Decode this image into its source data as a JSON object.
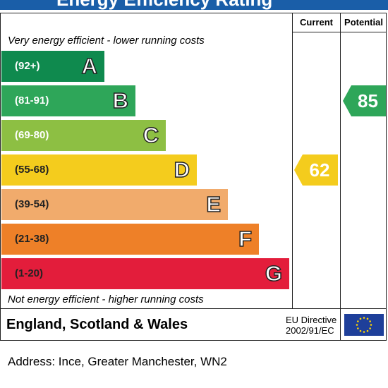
{
  "header": {
    "title": "Energy Efficiency Rating"
  },
  "columns": {
    "current": "Current",
    "potential": "Potential"
  },
  "notes": {
    "top": "Very energy efficient - lower running costs",
    "bottom": "Not energy efficient - higher running costs"
  },
  "footer": {
    "region": "England, Scotland & Wales",
    "directive_line1": "EU Directive",
    "directive_line2": "2002/91/EC"
  },
  "address": "Address: Ince, Greater Manchester, WN2",
  "chart_data": {
    "type": "bar",
    "bands": [
      {
        "letter": "A",
        "range": "(92+)",
        "color": "#0f8a4e"
      },
      {
        "letter": "B",
        "range": "(81-91)",
        "color": "#2ea659"
      },
      {
        "letter": "C",
        "range": "(69-80)",
        "color": "#8dbf43"
      },
      {
        "letter": "D",
        "range": "(55-68)",
        "color": "#f4cc1d"
      },
      {
        "letter": "E",
        "range": "(39-54)",
        "color": "#f1ab6c"
      },
      {
        "letter": "F",
        "range": "(21-38)",
        "color": "#ee8028"
      },
      {
        "letter": "G",
        "range": "(1-20)",
        "color": "#e31d3b"
      }
    ],
    "current": {
      "value": "62",
      "band": "D",
      "color": "#f4cc1d"
    },
    "potential": {
      "value": "85",
      "band": "B",
      "color": "#2ea659"
    }
  }
}
